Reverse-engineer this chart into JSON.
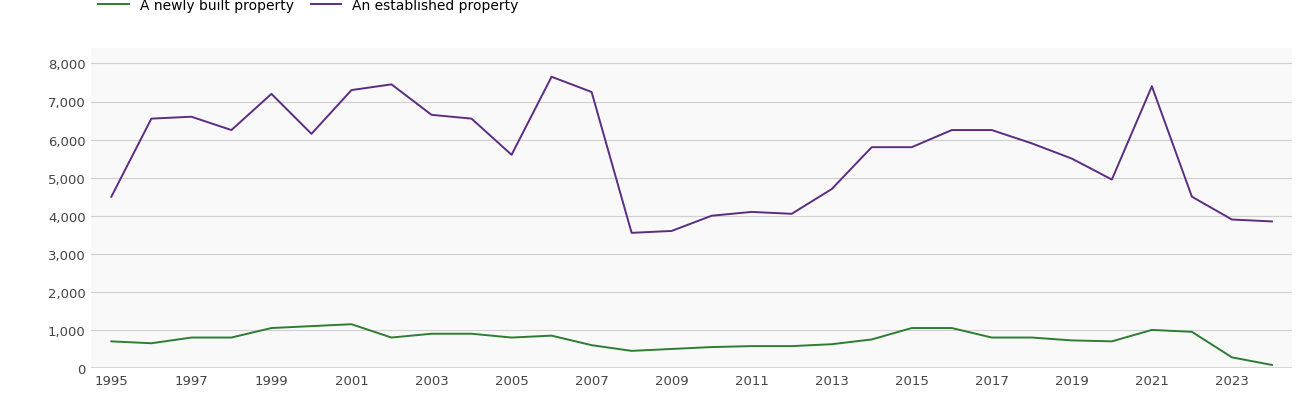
{
  "years": [
    1995,
    1996,
    1997,
    1998,
    1999,
    2000,
    2001,
    2002,
    2003,
    2004,
    2005,
    2006,
    2007,
    2008,
    2009,
    2010,
    2011,
    2012,
    2013,
    2014,
    2015,
    2016,
    2017,
    2018,
    2019,
    2020,
    2021,
    2022,
    2023,
    2024
  ],
  "new_homes": [
    700,
    650,
    800,
    800,
    1050,
    1100,
    1150,
    800,
    900,
    900,
    800,
    850,
    600,
    450,
    500,
    550,
    575,
    575,
    625,
    750,
    1050,
    1050,
    800,
    800,
    725,
    700,
    1000,
    950,
    280,
    80
  ],
  "established_homes": [
    4500,
    6550,
    6600,
    6250,
    7200,
    6150,
    7300,
    7450,
    6650,
    6550,
    5600,
    7650,
    7250,
    3550,
    3600,
    4000,
    4100,
    4050,
    4700,
    5800,
    5800,
    6250,
    6250,
    5900,
    5500,
    4950,
    7400,
    4500,
    3900,
    3850
  ],
  "new_homes_color": "#2e7d32",
  "established_homes_color": "#5b2d82",
  "new_homes_label": "A newly built property",
  "established_homes_label": "An established property",
  "ylim": [
    0,
    8400
  ],
  "yticks": [
    0,
    1000,
    2000,
    3000,
    4000,
    5000,
    6000,
    7000,
    8000
  ],
  "xtick_years": [
    1995,
    1997,
    1999,
    2001,
    2003,
    2005,
    2007,
    2009,
    2011,
    2013,
    2015,
    2017,
    2019,
    2021,
    2023
  ],
  "background_color": "#ffffff",
  "plot_bg_color": "#f9f9f9",
  "grid_color": "#d0d0d0"
}
